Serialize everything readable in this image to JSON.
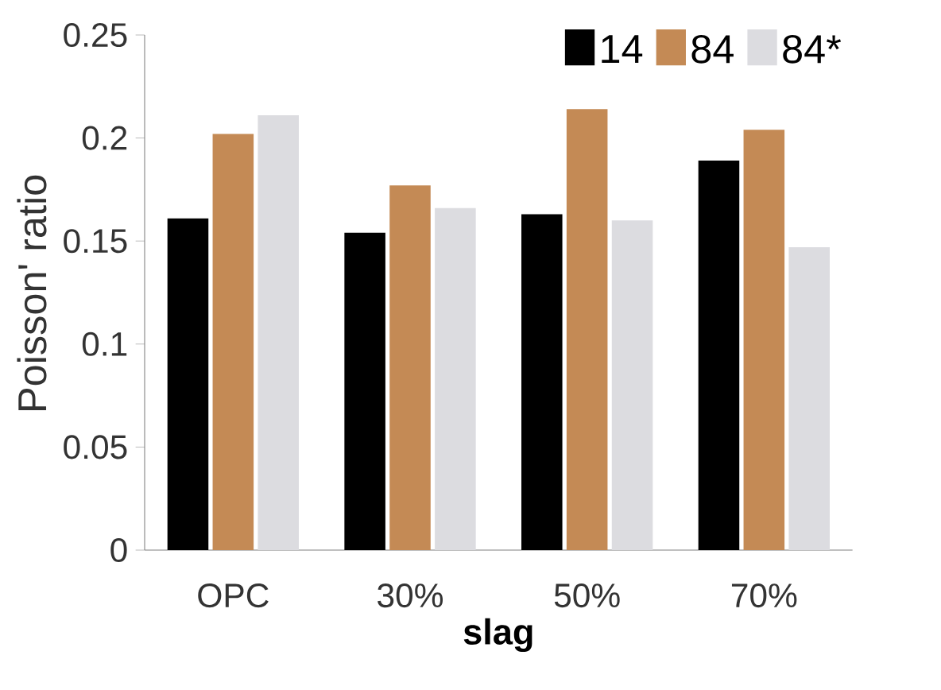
{
  "chart_data": {
    "type": "bar",
    "xlabel": "slag",
    "ylabel": "Poisson' ratio",
    "categories": [
      "OPC",
      "30%",
      "50%",
      "70%"
    ],
    "series": [
      {
        "name": "14",
        "color": "#000000",
        "values": [
          0.161,
          0.154,
          0.163,
          0.189
        ]
      },
      {
        "name": "84",
        "color": "#c48a55",
        "values": [
          0.202,
          0.177,
          0.214,
          0.204
        ]
      },
      {
        "name": "84*",
        "color": "#dcdce0",
        "values": [
          0.211,
          0.166,
          0.16,
          0.147
        ]
      }
    ],
    "ylim": [
      0,
      0.25
    ],
    "yticks": [
      0,
      0.05,
      0.1,
      0.15,
      0.2,
      0.25
    ],
    "grid": false,
    "legend": "top right"
  }
}
